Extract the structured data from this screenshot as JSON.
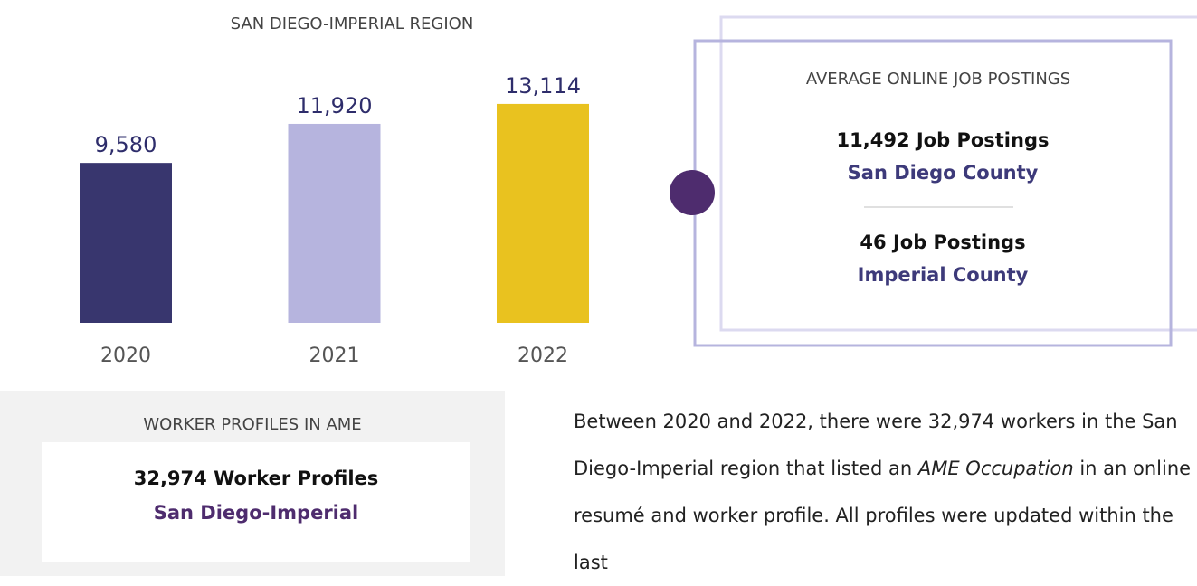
{
  "chart_data": {
    "type": "bar",
    "title": "SAN DIEGO-IMPERIAL REGION",
    "categories": [
      "2020",
      "2021",
      "2022"
    ],
    "values": [
      9580,
      11920,
      13114
    ],
    "value_labels": [
      "9,580",
      "11,920",
      "13,114"
    ],
    "colors": [
      "#38366e",
      "#b6b4de",
      "#e9c21f"
    ]
  },
  "postings": {
    "title": "AVERAGE ONLINE JOB POSTINGS",
    "items": [
      {
        "count": "11,492 Job Postings",
        "area": "San Diego County"
      },
      {
        "count": "46 Job Postings",
        "area": "Imperial County"
      }
    ]
  },
  "profiles": {
    "title": "WORKER PROFILES IN AME",
    "count": "32,974 Worker Profiles",
    "area": "San Diego-Imperial"
  },
  "paragraph": {
    "before": "Between 2020 and 2022, there were 32,974 workers in the San Diego-Imperial region that listed an ",
    "italic": "AME Occupation",
    "after": " in an online resumé and worker profile. All profiles were updated within the last"
  }
}
